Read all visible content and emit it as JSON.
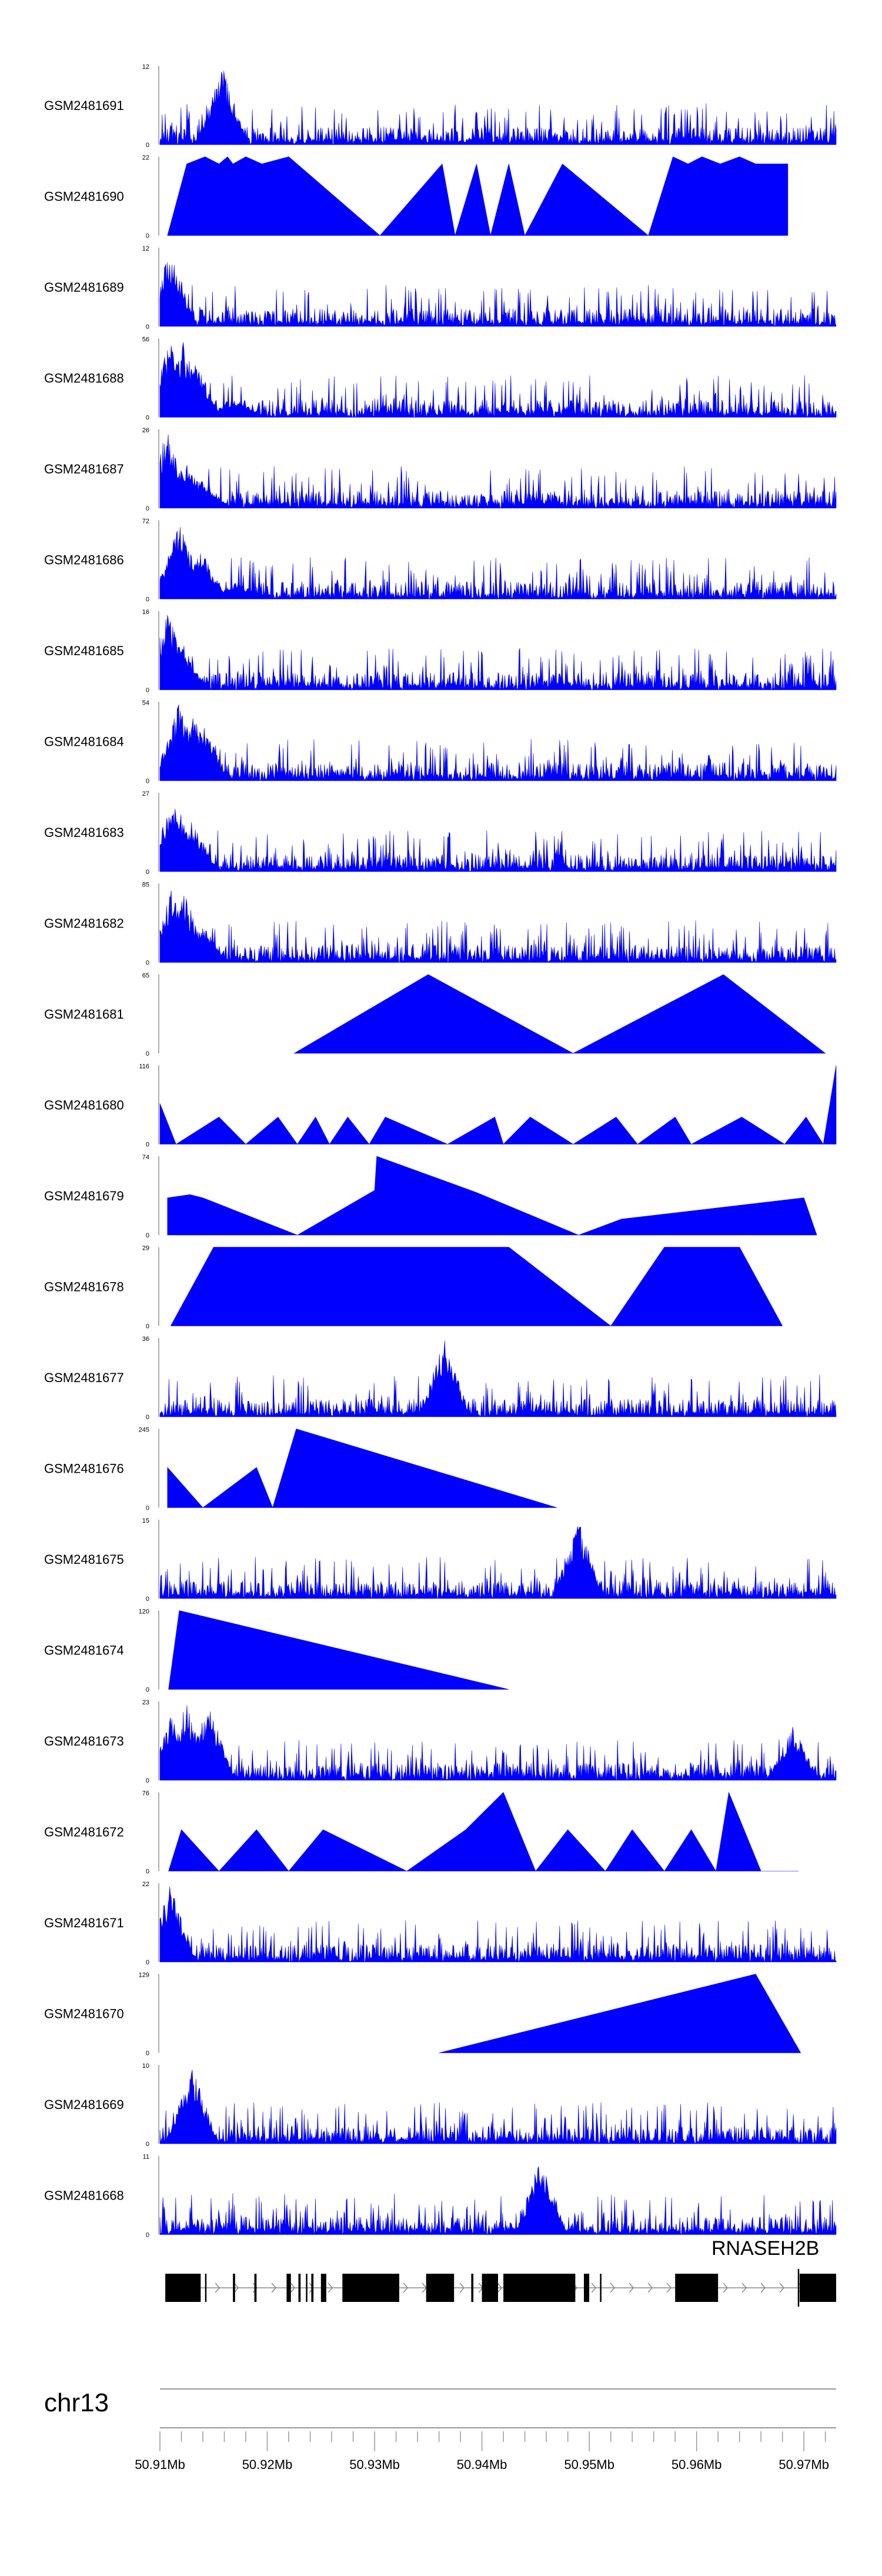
{
  "chart_data": {
    "type": "area",
    "title": "",
    "xlabel": "chr13",
    "chromosome": "chr13",
    "gene_name": "RNASEH2B",
    "xlim": [
      50.91,
      50.973
    ],
    "x_ticks": [
      "50.91Mb",
      "50.92Mb",
      "50.93Mb",
      "50.94Mb",
      "50.95Mb",
      "50.96Mb",
      "50.97Mb"
    ],
    "x_tick_values": [
      50.91,
      50.92,
      50.93,
      50.94,
      50.95,
      50.96,
      50.97
    ],
    "fill_color": "#0000ff",
    "gene_color": "#000000",
    "series": [
      {
        "name": "GSM2481691",
        "ymax": "12",
        "style": "noisy",
        "x": [
          50.9158
        ],
        "y": [
          12
        ]
      },
      {
        "name": "GSM2481690",
        "ymax": "22",
        "style": "tri",
        "x": [
          50.9107,
          50.9125,
          50.9142,
          50.9155,
          50.9163,
          50.9168,
          50.918,
          50.9195,
          50.922,
          50.9305,
          50.9363,
          50.9375,
          50.9395,
          50.9408,
          50.9425,
          50.944,
          50.9475,
          50.9555,
          50.9578,
          50.9592,
          50.9605,
          50.9622,
          50.964,
          50.9655,
          50.9668,
          50.9685
        ],
        "y": [
          0,
          20,
          22,
          20,
          22,
          20,
          22,
          20,
          22,
          0,
          20,
          0,
          20,
          0,
          20,
          0,
          20,
          0,
          22,
          20,
          22,
          20,
          22,
          20,
          20,
          20
        ]
      },
      {
        "name": "GSM2481689",
        "ymax": "12",
        "style": "noisy",
        "x": [
          50.911
        ],
        "y": [
          12
        ]
      },
      {
        "name": "GSM2481688",
        "ymax": "56",
        "style": "noisy",
        "x": [
          50.911,
          50.9122,
          50.9133,
          50.917
        ],
        "y": [
          56,
          54,
          40,
          15
        ]
      },
      {
        "name": "GSM2481687",
        "ymax": "26",
        "style": "noisy",
        "x": [
          50.9107,
          50.9125,
          50.914
        ],
        "y": [
          26,
          16,
          10
        ]
      },
      {
        "name": "GSM2481686",
        "ymax": "72",
        "style": "noisy",
        "x": [
          50.9118,
          50.9138,
          50.9172
        ],
        "y": [
          72,
          45,
          16
        ]
      },
      {
        "name": "GSM2481685",
        "ymax": "16",
        "style": "noisy",
        "x": [
          50.9108,
          50.912
        ],
        "y": [
          16,
          10
        ]
      },
      {
        "name": "GSM2481684",
        "ymax": "54",
        "style": "noisy",
        "x": [
          50.9118,
          50.913,
          50.914
        ],
        "y": [
          54,
          48,
          40
        ]
      },
      {
        "name": "GSM2481683",
        "ymax": "27",
        "style": "noisy",
        "x": [
          50.9113,
          50.913
        ],
        "y": [
          27,
          18
        ]
      },
      {
        "name": "GSM2481682",
        "ymax": "85",
        "style": "noisy",
        "x": [
          50.9112,
          50.9122,
          50.914
        ],
        "y": [
          85,
          78,
          40
        ]
      },
      {
        "name": "GSM2481681",
        "ymax": "65",
        "style": "tri",
        "x": [
          50.9225,
          50.935,
          50.9485,
          50.9625,
          50.972
        ],
        "y": [
          0,
          65,
          0,
          65,
          0
        ]
      },
      {
        "name": "GSM2481680",
        "ymax": "116",
        "style": "tri",
        "x": [
          50.91,
          50.9115,
          50.9155,
          50.918,
          50.921,
          50.9228,
          50.9245,
          50.9258,
          50.9275,
          50.9295,
          50.931,
          50.9368,
          50.9412,
          50.942,
          50.9445,
          50.9485,
          50.9525,
          50.9545,
          50.958,
          50.9595,
          50.9642,
          50.9682,
          50.9702,
          50.9718,
          50.973
        ],
        "y": [
          60,
          0,
          40,
          0,
          40,
          0,
          40,
          0,
          40,
          0,
          40,
          0,
          40,
          0,
          40,
          0,
          40,
          0,
          40,
          0,
          40,
          0,
          40,
          0,
          116
        ]
      },
      {
        "name": "GSM2481679",
        "ymax": "74",
        "style": "tri",
        "x": [
          50.9107,
          50.9128,
          50.914,
          50.9228,
          50.93,
          50.9302,
          50.9395,
          50.949,
          50.953,
          50.97,
          50.9712
        ],
        "y": [
          35,
          38,
          35,
          0,
          42,
          74,
          40,
          0,
          15,
          35,
          0
        ]
      },
      {
        "name": "GSM2481678",
        "ymax": "29",
        "style": "tri",
        "x": [
          50.911,
          50.915,
          50.9185,
          50.921,
          50.923,
          50.928,
          50.933,
          50.9425,
          50.952,
          50.957,
          50.9605,
          50.964,
          50.968
        ],
        "y": [
          0,
          29,
          29,
          29,
          29,
          29,
          29,
          29,
          0,
          29,
          29,
          29,
          0
        ]
      },
      {
        "name": "GSM2481677",
        "ymax": "36",
        "style": "noisy",
        "x": [
          50.9365
        ],
        "y": [
          36
        ]
      },
      {
        "name": "GSM2481676",
        "ymax": "245",
        "style": "tri",
        "x": [
          50.9107,
          50.914,
          50.919,
          50.9205,
          50.9227,
          50.947
        ],
        "y": [
          125,
          0,
          125,
          0,
          245,
          0
        ]
      },
      {
        "name": "GSM2481675",
        "ymax": "15",
        "style": "noisy",
        "x": [
          50.949
        ],
        "y": [
          15
        ]
      },
      {
        "name": "GSM2481674",
        "ymax": "120",
        "style": "tri",
        "x": [
          50.9108,
          50.9118,
          50.9425
        ],
        "y": [
          0,
          120,
          0
        ]
      },
      {
        "name": "GSM2481673",
        "ymax": "23",
        "style": "noisy",
        "x": [
          50.911,
          50.9125,
          50.9145,
          50.969
        ],
        "y": [
          20,
          23,
          23,
          16
        ]
      },
      {
        "name": "GSM2481672",
        "ymax": "76",
        "style": "tri",
        "x": [
          50.9108,
          50.912,
          50.9155,
          50.919,
          50.922,
          50.9252,
          50.933,
          50.9385,
          50.942,
          50.945,
          50.948,
          50.9515,
          50.954,
          50.957,
          50.9595,
          50.9618,
          50.963,
          50.966,
          50.9695
        ],
        "y": [
          0,
          40,
          0,
          40,
          0,
          40,
          0,
          40,
          76,
          0,
          40,
          0,
          40,
          0,
          40,
          0,
          76,
          0,
          0
        ]
      },
      {
        "name": "GSM2481671",
        "ymax": "22",
        "style": "noisy",
        "x": [
          50.911
        ],
        "y": [
          22
        ]
      },
      {
        "name": "GSM2481670",
        "ymax": "129",
        "style": "tri",
        "x": [
          50.936,
          50.9655,
          50.9697
        ],
        "y": [
          0,
          129,
          0
        ]
      },
      {
        "name": "GSM2481669",
        "ymax": "10",
        "style": "noisy",
        "x": [
          50.913
        ],
        "y": [
          10
        ]
      },
      {
        "name": "GSM2481668",
        "ymax": "11",
        "style": "noisy",
        "x": [
          50.9455
        ],
        "y": [
          11
        ]
      }
    ],
    "gene_exons": [
      [
        50.9105,
        50.9138
      ],
      [
        50.9142,
        50.9143
      ],
      [
        50.9168,
        50.917
      ],
      [
        50.9188,
        50.919
      ],
      [
        50.9218,
        50.9222
      ],
      [
        50.9229,
        50.9231
      ],
      [
        50.9236,
        50.9237
      ],
      [
        50.9241,
        50.9243
      ],
      [
        50.925,
        50.9255
      ],
      [
        50.927,
        50.9323
      ],
      [
        50.9348,
        50.9374
      ],
      [
        50.939,
        50.9392
      ],
      [
        50.94,
        50.9415
      ],
      [
        50.942,
        50.9487
      ],
      [
        50.9495,
        50.95
      ],
      [
        50.951,
        50.9511
      ],
      [
        50.958,
        50.962
      ]
    ]
  }
}
